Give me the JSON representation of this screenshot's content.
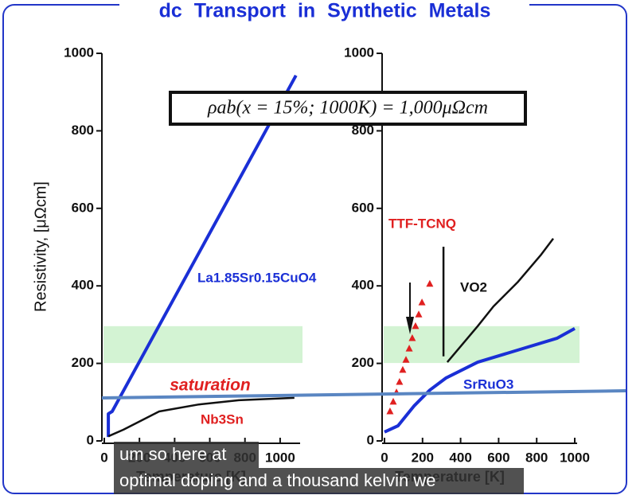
{
  "title": "dc Transport in Synthetic Metals",
  "annotation": "ρab(x = 15%; 1000K) = 1,000μΩcm",
  "captions": [
    "um so here at",
    "optimal doping and a thousand kelvin we"
  ],
  "chart_data": [
    {
      "type": "line",
      "ylabel": "Resistivity,   [μΩcm]",
      "xlabel": "Temperature [K]",
      "xlim": [
        0,
        1100
      ],
      "ylim": [
        0,
        1000
      ],
      "xticks": [
        0,
        200,
        400,
        600,
        800,
        1000
      ],
      "yticks": [
        0,
        200,
        400,
        600,
        800,
        1000
      ],
      "band": [
        201,
        296
      ],
      "band_color": "#c8f0c8",
      "annotations": [
        "saturation"
      ],
      "series": [
        {
          "name": "La1.85Sr0.15CuO4",
          "color": "#1a2fd6",
          "label_color": "#1a2fd6",
          "x": [
            23,
            23,
            45,
            1090
          ],
          "values": [
            10,
            70,
            76,
            943
          ]
        },
        {
          "name": "Nb3Sn",
          "color": "#111111",
          "label_color": "#e02020",
          "x": [
            23,
            109,
            312,
            538,
            765,
            1081
          ],
          "values": [
            12,
            29,
            76,
            94,
            105,
            111
          ]
        }
      ]
    },
    {
      "type": "line",
      "xlabel": "Temperature [K]",
      "xlim": [
        0,
        1000
      ],
      "ylim": [
        0,
        1000
      ],
      "xticks": [
        0,
        200,
        400,
        600,
        800,
        1000
      ],
      "yticks": [
        0,
        200,
        400,
        600,
        800,
        1000
      ],
      "band": [
        201,
        296
      ],
      "band_color": "#c8f0c8",
      "series": [
        {
          "name": "SrRuO3",
          "color": "#1a2fd6",
          "label_color": "#1a2fd6",
          "x": [
            0,
            71,
            155,
            238,
            322,
            490,
            699,
            908,
            1000
          ],
          "values": [
            23,
            39,
            90,
            131,
            162,
            203,
            234,
            265,
            290
          ]
        },
        {
          "name": "VO2",
          "color": "#111111",
          "label_color": "#111111",
          "x": [
            310,
            310,
            320,
            330,
            490,
            573,
            699,
            824,
            887
          ],
          "values": [
            501,
            218,
            null,
            203,
            296,
            347,
            409,
            481,
            522
          ]
        },
        {
          "name": "TTF-TCNQ",
          "color": "#e02020",
          "label_color": "#e02020",
          "marker": "triangle",
          "x": [
            29,
            46,
            63,
            79,
            96,
            113,
            130,
            146,
            163,
            180,
            197,
            238
          ],
          "values": [
            76,
            101,
            125,
            152,
            183,
            209,
            238,
            265,
            296,
            326,
            357,
            405
          ]
        }
      ]
    }
  ]
}
